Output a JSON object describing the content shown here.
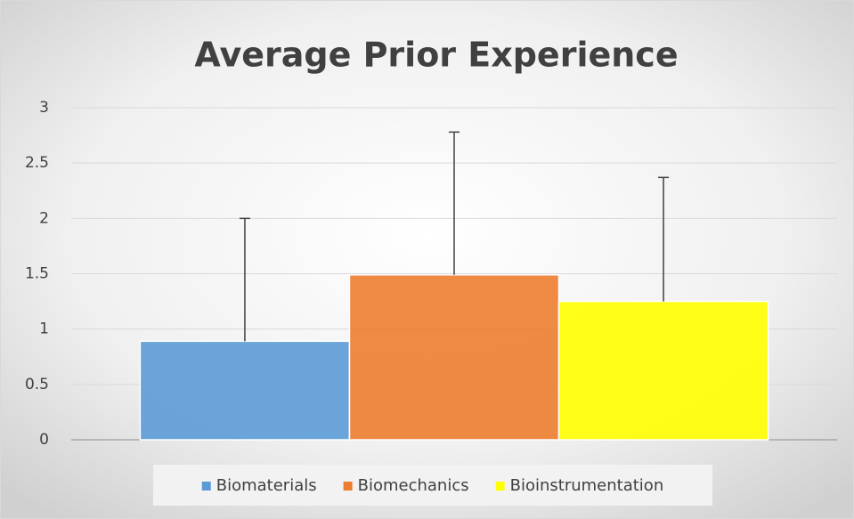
{
  "chart_data": {
    "type": "bar",
    "title": "Average Prior Experience",
    "categories": [
      null
    ],
    "series": [
      {
        "name": "Biomaterials",
        "color": "#5b9bd5",
        "values": [
          0.89
        ],
        "errors": [
          1.11
        ]
      },
      {
        "name": "Biomechanics",
        "color": "#ed7d31",
        "values": [
          1.49
        ],
        "errors": [
          1.29
        ]
      },
      {
        "name": "Bioinstrumentation",
        "color": "#ffff00",
        "values": [
          1.25
        ],
        "errors": [
          1.12
        ]
      }
    ],
    "ylim": [
      0,
      3
    ],
    "yticks": [
      0,
      0.5,
      1,
      1.5,
      2,
      2.5,
      3
    ],
    "grid": true,
    "legend": "bottom"
  }
}
